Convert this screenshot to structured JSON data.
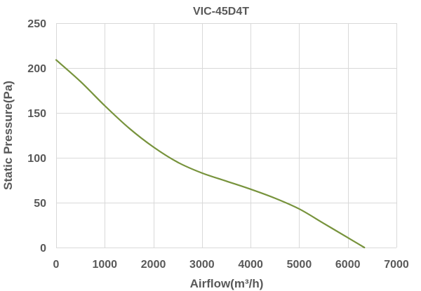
{
  "chart_data": {
    "type": "line",
    "title": "VIC-45D4T",
    "xlabel": "Airflow(m³/h)",
    "ylabel": "Static Pressure(Pa)",
    "xlim": [
      0,
      7000
    ],
    "ylim": [
      0,
      250
    ],
    "xticks": [
      0,
      1000,
      2000,
      3000,
      4000,
      5000,
      6000,
      7000
    ],
    "yticks": [
      0,
      50,
      100,
      150,
      200,
      250
    ],
    "grid": true,
    "legend": "none",
    "line_color": "#77933c",
    "series": [
      {
        "x": [
          0,
          500,
          1000,
          1500,
          2000,
          2500,
          3000,
          3500,
          4000,
          4500,
          5000,
          5500,
          6000,
          6340
        ],
        "y": [
          209,
          185,
          158,
          133,
          112,
          95,
          83,
          74,
          65,
          55,
          43,
          27,
          11,
          0
        ]
      }
    ]
  }
}
